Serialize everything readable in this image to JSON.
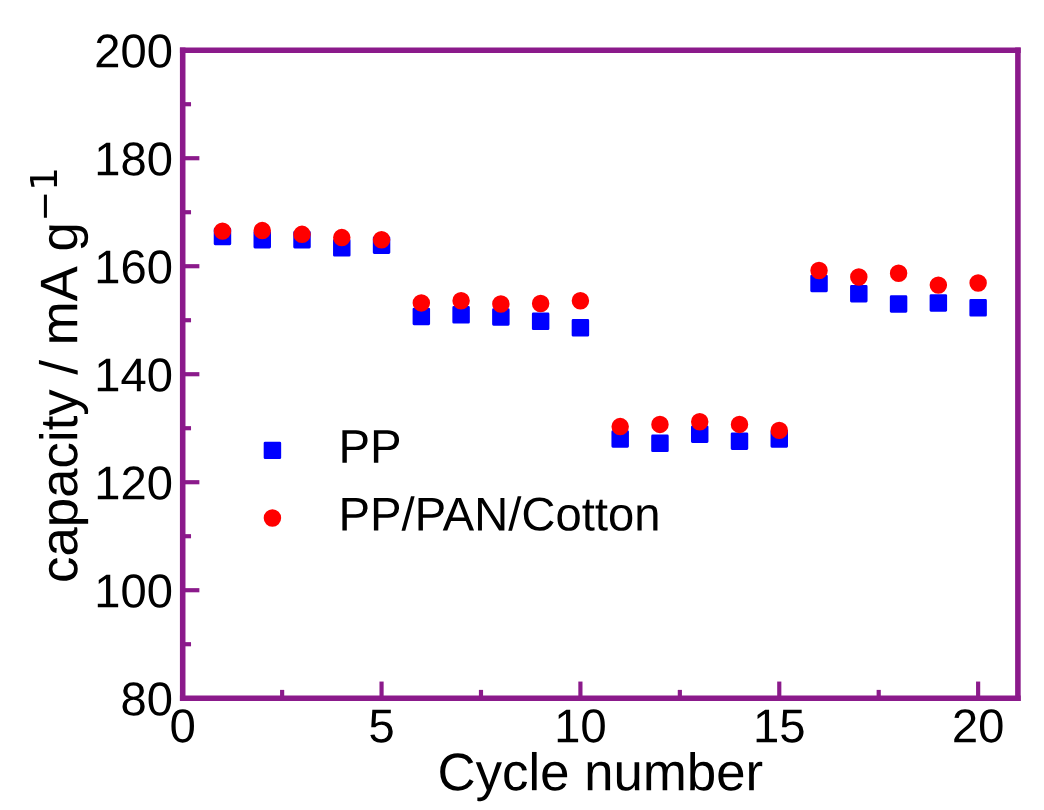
{
  "chart_data": {
    "type": "scatter",
    "xlabel": "Cycle number",
    "ylabel": "capacity / mA g$^{−1}$",
    "x": [
      1,
      2,
      3,
      4,
      5,
      6,
      7,
      8,
      9,
      10,
      11,
      12,
      13,
      14,
      15,
      16,
      17,
      18,
      19,
      20
    ],
    "xlim": [
      0,
      21
    ],
    "xticks": [
      0,
      5,
      10,
      15,
      20
    ],
    "ylim": [
      80,
      200
    ],
    "yticks": [
      80,
      100,
      120,
      140,
      160,
      180,
      200
    ],
    "grid": false,
    "legend": "left",
    "series": [
      {
        "name": "PP",
        "color": "#0000ff",
        "marker": "square",
        "values": [
          165.5,
          164.9,
          164.9,
          163.4,
          163.9,
          150.7,
          151.0,
          150.6,
          149.8,
          148.6,
          128.0,
          127.2,
          128.9,
          127.6,
          128.0,
          156.8,
          154.9,
          153.0,
          153.2,
          152.3
        ]
      },
      {
        "name": "PP/PAN/Cotton",
        "color": "#ff0000",
        "marker": "circle",
        "values": [
          166.5,
          166.6,
          165.9,
          165.3,
          164.9,
          153.2,
          153.6,
          153.0,
          153.1,
          153.6,
          130.3,
          130.7,
          131.2,
          130.7,
          129.6,
          159.2,
          158.0,
          158.7,
          156.5,
          156.9
        ]
      }
    ]
  }
}
